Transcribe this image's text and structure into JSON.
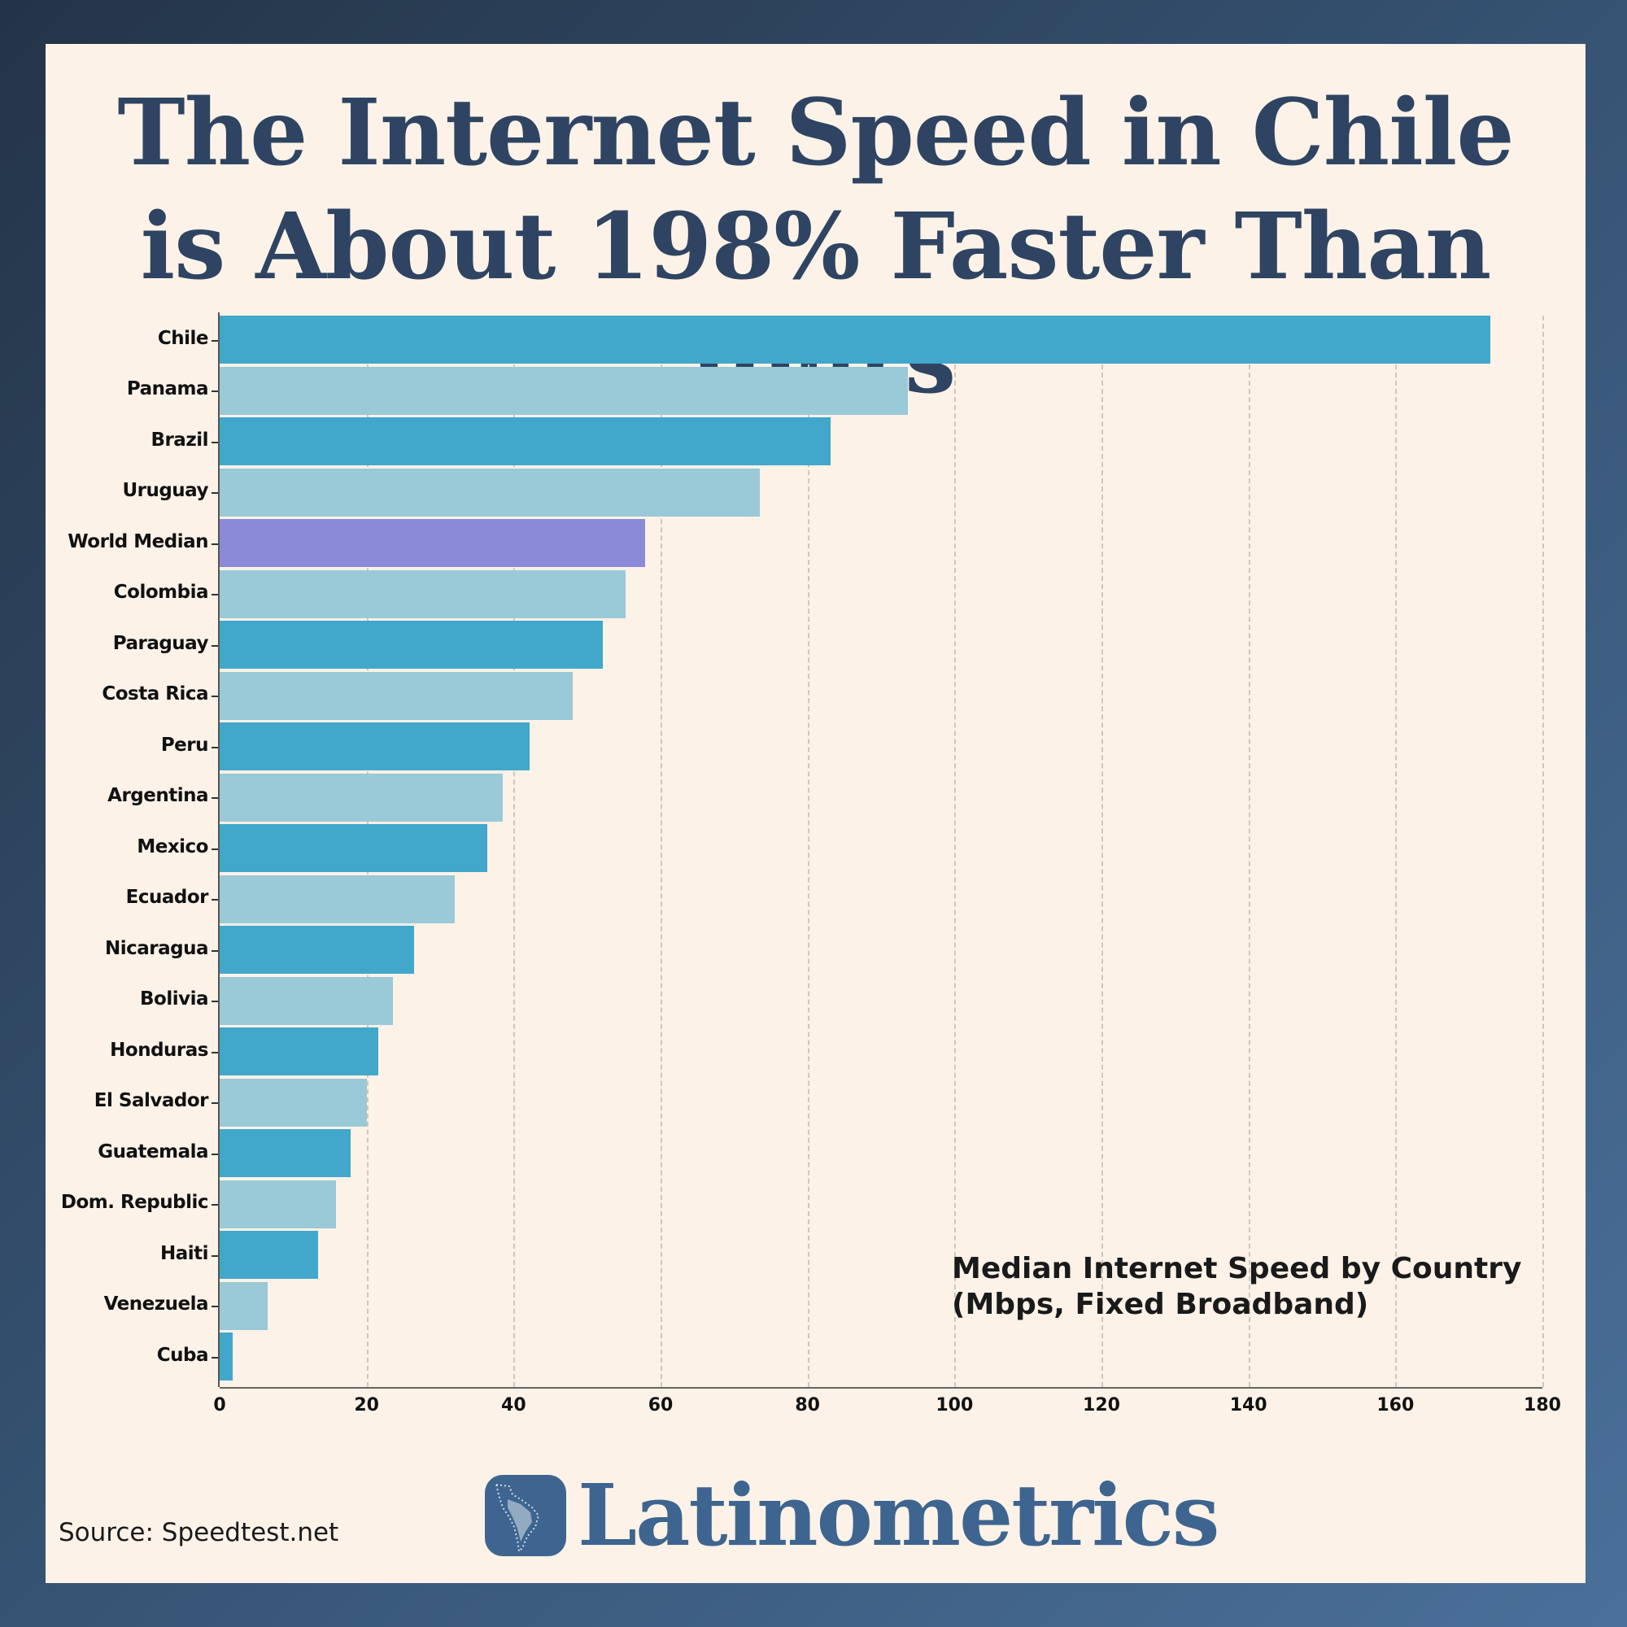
{
  "title": {
    "line1": "The Internet Speed in Chile",
    "line2": "is About 198% Faster Than Yours"
  },
  "legend": {
    "line1": "Median Internet Speed by Country",
    "line2": "(Mbps, Fixed Broadband)"
  },
  "source": "Source: Speedtest.net",
  "brand": {
    "name": "Latinometrics",
    "icon": "latin-america-map-icon"
  },
  "colors": {
    "dark_bar": "#41a7cb",
    "light_bar": "#9ac9d7",
    "world_median": "#8a8ad8",
    "title": "#2e4462",
    "panel_bg": "#fdf2e7",
    "brand": "#3e6590"
  },
  "chart_data": {
    "type": "bar",
    "orientation": "horizontal",
    "title": "Median Internet Speed by Country (Mbps, Fixed Broadband)",
    "xlabel": "",
    "ylabel": "",
    "xlim": [
      0,
      180
    ],
    "xticks": [
      0,
      20,
      40,
      60,
      80,
      100,
      120,
      140,
      160,
      180
    ],
    "grid": "vertical dashed",
    "categories": [
      "Chile",
      "Panama",
      "Brazil",
      "Uruguay",
      "World Median",
      "Colombia",
      "Paraguay",
      "Costa Rica",
      "Peru",
      "Argentina",
      "Mexico",
      "Ecuador",
      "Nicaragua",
      "Bolivia",
      "Honduras",
      "El Salvador",
      "Guatemala",
      "Dom. Republic",
      "Haiti",
      "Venezuela",
      "Cuba"
    ],
    "values": [
      172.9,
      93.6,
      83.1,
      73.5,
      57.9,
      55.2,
      52.1,
      48.0,
      42.2,
      38.5,
      36.4,
      32.0,
      26.5,
      23.6,
      21.6,
      20.0,
      17.8,
      15.8,
      13.4,
      6.5,
      1.8
    ],
    "bar_colors": [
      "dark",
      "light",
      "dark",
      "light",
      "world",
      "light",
      "dark",
      "light",
      "dark",
      "light",
      "dark",
      "light",
      "dark",
      "light",
      "dark",
      "light",
      "dark",
      "light",
      "dark",
      "light",
      "dark"
    ]
  }
}
